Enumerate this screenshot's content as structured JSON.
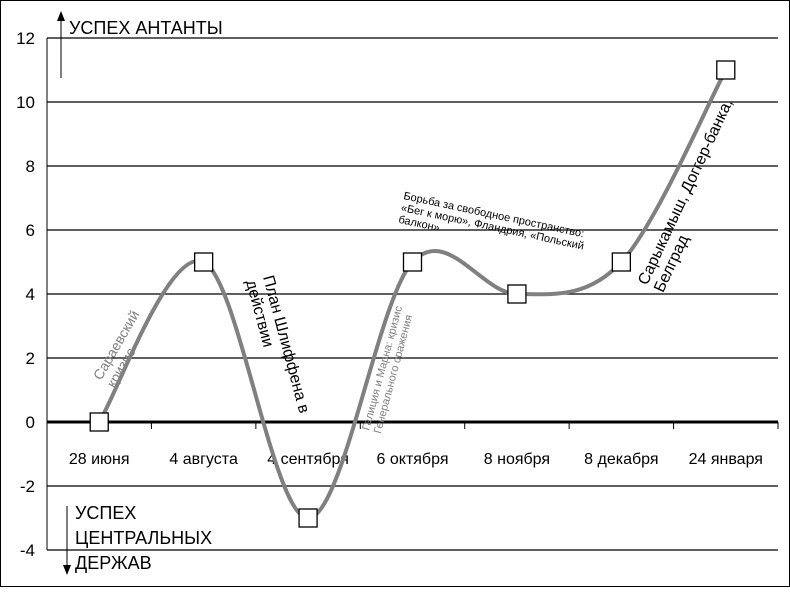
{
  "chart_data": {
    "type": "line",
    "smoothed": true,
    "categories": [
      "28 июня",
      "4 августа",
      "4 сентября",
      "6 октября",
      "8 ноября",
      "8 декабря",
      "24 января"
    ],
    "values": [
      0,
      5,
      -3,
      5,
      4,
      5,
      11
    ],
    "ylim": [
      -4,
      12
    ],
    "yticks": [
      -4,
      -2,
      0,
      2,
      4,
      6,
      8,
      10,
      12
    ],
    "grid": true,
    "line_color": "#808080",
    "marker": "square",
    "annotations_axis": {
      "top": "УСПЕХ АНТАНТЫ",
      "bottom": [
        "УСПЕХ",
        "ЦЕНТРАЛЬНЫХ",
        "ДЕРЖАВ"
      ]
    },
    "annotations": [
      {
        "lines": [
          "Сараевский",
          "кризис"
        ],
        "color": "#808080"
      },
      {
        "lines": [
          "План Шлиффена в",
          "действии"
        ],
        "color": "#000000"
      },
      {
        "lines": [
          "Галиция и Марна: кризис",
          "Генерального сражения"
        ],
        "color": "#808080"
      },
      {
        "lines": [
          "Борьба за свободное пространство:",
          "«Бег к морю», Фландрия, «Польский",
          "балкон»"
        ],
        "color": "#000000"
      },
      {
        "lines": [
          "Сарыкамыш, Доггер-банка,",
          "Белград"
        ],
        "color": "#000000"
      }
    ]
  }
}
